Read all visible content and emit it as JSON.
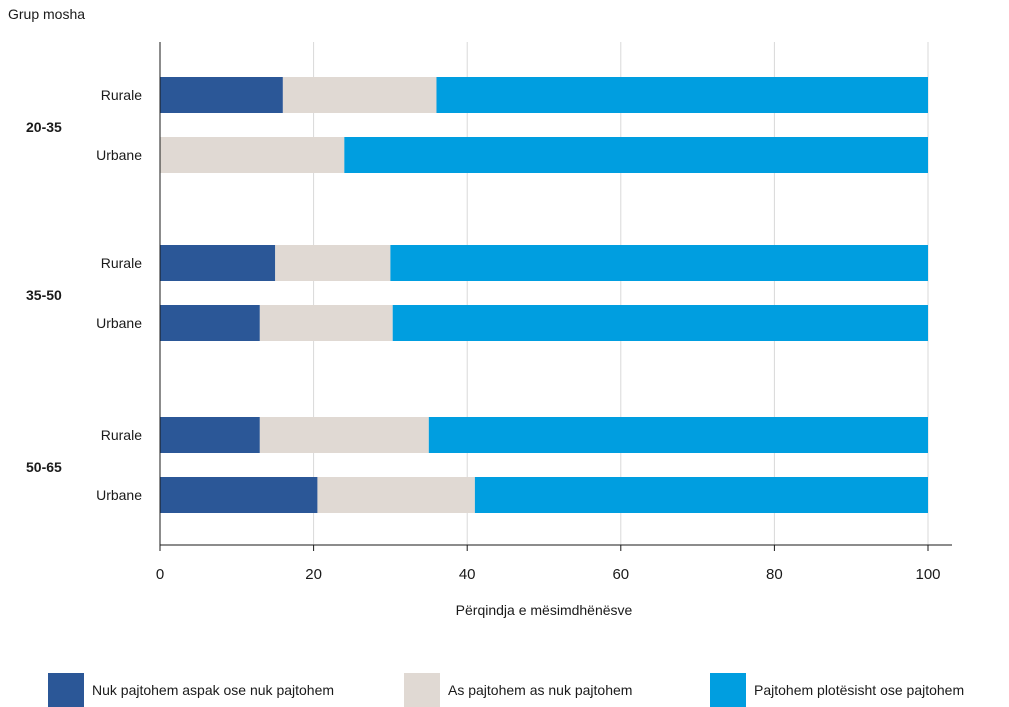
{
  "chart_data": {
    "type": "bar",
    "orientation": "horizontal",
    "stacked": true,
    "title": "",
    "ylabel": "Grup mosha",
    "xlabel": "Përqindja e mësimdhënësve",
    "xlim": [
      0,
      100
    ],
    "xticks": [
      "0",
      "20",
      "40",
      "60",
      "80",
      "100"
    ],
    "grid": true,
    "legend_position": "bottom",
    "groups": [
      {
        "label": "20-35",
        "categories": [
          "Rurale",
          "Urbane"
        ]
      },
      {
        "label": "35-50",
        "categories": [
          "Rurale",
          "Urbane"
        ]
      },
      {
        "label": "50-65",
        "categories": [
          "Rurale",
          "Urbane"
        ]
      }
    ],
    "series": [
      {
        "name": "Nuk pajtohem aspak ose nuk pajtohem",
        "color": "#2b5797",
        "values": [
          16,
          0,
          15,
          13,
          13,
          20.5
        ]
      },
      {
        "name": "As pajtohem as nuk pajtohem",
        "color": "#e0d9d3",
        "values": [
          20,
          24,
          15,
          17.3,
          22,
          20.5
        ]
      },
      {
        "name": "Pajtohem plotësisht ose pajtohem",
        "color": "#009ee0",
        "values": [
          64,
          76,
          70,
          69.7,
          65,
          59
        ]
      }
    ]
  }
}
